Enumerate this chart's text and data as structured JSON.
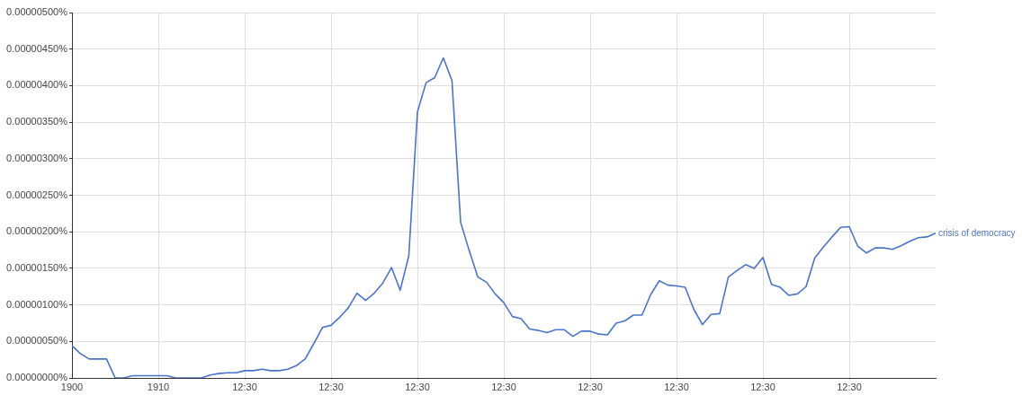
{
  "chart_data": {
    "type": "line",
    "categories": [
      "1900",
      null,
      null,
      null,
      null,
      null,
      null,
      null,
      null,
      null,
      "1910",
      null,
      null,
      null,
      null,
      null,
      null,
      null,
      null,
      null,
      "12:30",
      null,
      null,
      null,
      null,
      null,
      null,
      null,
      null,
      null,
      "12:30",
      null,
      null,
      null,
      null,
      null,
      null,
      null,
      null,
      null,
      "12:30",
      null,
      null,
      null,
      null,
      null,
      null,
      null,
      null,
      null,
      "12:30",
      null,
      null,
      null,
      null,
      null,
      null,
      null,
      null,
      null,
      "12:30",
      null,
      null,
      null,
      null,
      null,
      null,
      null,
      null,
      null,
      "12:30",
      null,
      null,
      null,
      null,
      null,
      null,
      null,
      null,
      null,
      "12:30",
      null,
      null,
      null,
      null,
      null,
      null,
      null,
      null,
      null,
      "12:30",
      null,
      null,
      null,
      null,
      null,
      null,
      null,
      null,
      null,
      null
    ],
    "series": [
      {
        "name": "crisis of democracy",
        "color": "#4a74c9",
        "values": [
          4.4e-07,
          3.3e-07,
          2.6e-07,
          2.6e-07,
          2.6e-07,
          0,
          0,
          3e-08,
          3e-08,
          3e-08,
          3e-08,
          3e-08,
          0,
          0,
          0,
          0,
          4e-08,
          6e-08,
          7e-08,
          7e-08,
          1e-07,
          1e-07,
          1.2e-07,
          1e-07,
          1e-07,
          1.2e-07,
          1.7e-07,
          2.6e-07,
          4.7e-07,
          6.9e-07,
          7.2e-07,
          8.3e-07,
          9.6e-07,
          1.16e-06,
          1.06e-06,
          1.16e-06,
          1.3e-06,
          1.51e-06,
          1.2e-06,
          1.67e-06,
          3.64e-06,
          4.04e-06,
          4.11e-06,
          4.38e-06,
          4.07e-06,
          2.13e-06,
          1.74e-06,
          1.38e-06,
          1.31e-06,
          1.15e-06,
          1.03e-06,
          8.4e-07,
          8.1e-07,
          6.7e-07,
          6.5e-07,
          6.2e-07,
          6.6e-07,
          6.6e-07,
          5.7e-07,
          6.4e-07,
          6.4e-07,
          6e-07,
          5.9e-07,
          7.5e-07,
          7.8e-07,
          8.6e-07,
          8.6e-07,
          1.14e-06,
          1.33e-06,
          1.27e-06,
          1.26e-06,
          1.24e-06,
          9.4e-07,
          7.3e-07,
          8.7e-07,
          8.8e-07,
          1.38e-06,
          1.47e-06,
          1.55e-06,
          1.5e-06,
          1.65e-06,
          1.28e-06,
          1.24e-06,
          1.13e-06,
          1.15e-06,
          1.25e-06,
          1.64e-06,
          1.79e-06,
          1.93e-06,
          2.06e-06,
          2.07e-06,
          1.8e-06,
          1.71e-06,
          1.78e-06,
          1.78e-06,
          1.76e-06,
          1.81e-06,
          1.87e-06,
          1.92e-06,
          1.93e-06,
          1.98e-06
        ]
      }
    ],
    "ylim": [
      0,
      5e-06
    ],
    "yticks": [
      {
        "value": 0,
        "label": "0.00000000%"
      },
      {
        "value": 5e-07,
        "label": "0.00000050%"
      },
      {
        "value": 1e-06,
        "label": "0.00000100%"
      },
      {
        "value": 1.5e-06,
        "label": "0.00000150%"
      },
      {
        "value": 2e-06,
        "label": "0.00000200%"
      },
      {
        "value": 2.5e-06,
        "label": "0.00000250%"
      },
      {
        "value": 3e-06,
        "label": "0.00000300%"
      },
      {
        "value": 3.5e-06,
        "label": "0.00000350%"
      },
      {
        "value": 4e-06,
        "label": "0.00000400%"
      },
      {
        "value": 4.5e-06,
        "label": "0.00000450%"
      },
      {
        "value": 5e-06,
        "label": "0.00000500%"
      }
    ],
    "grid": true,
    "legend": false,
    "marker": "none",
    "line_style": "solid"
  }
}
